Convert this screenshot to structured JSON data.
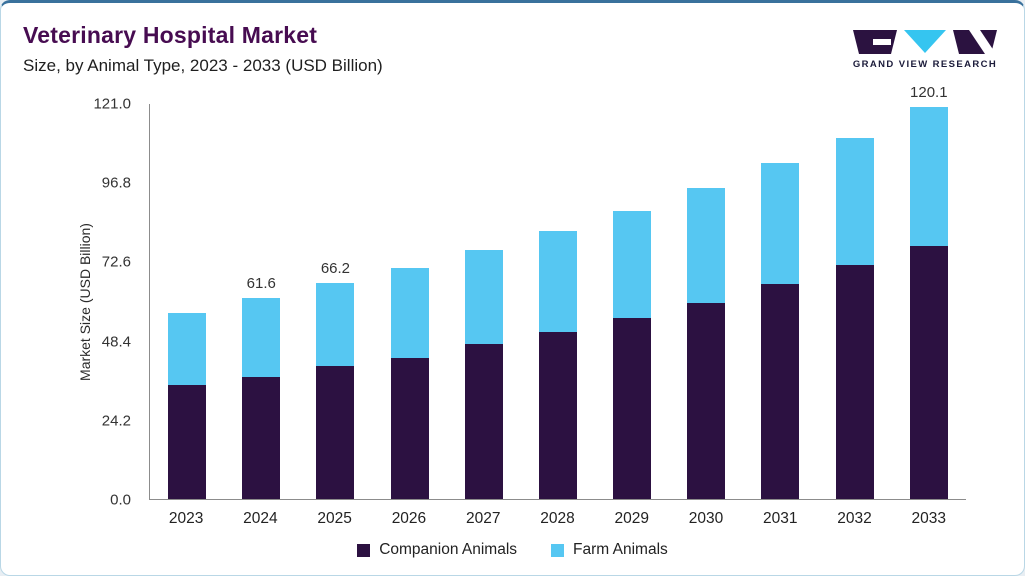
{
  "header": {
    "title": "Veterinary Hospital Market",
    "subtitle": "Size, by Animal Type, 2023 - 2033 (USD Billion)",
    "logo": {
      "text": "GRAND VIEW RESEARCH"
    }
  },
  "chart_data": {
    "type": "bar",
    "stacked": true,
    "title": "Veterinary Hospital Market Size, by Animal Type, 2023 - 2033 (USD Billion)",
    "xlabel": "",
    "ylabel": "Market Size (USD Billion)",
    "ylim": [
      0,
      121.0
    ],
    "ytick_labels": [
      "0.0",
      "24.2",
      "48.4",
      "72.6",
      "96.8",
      "121.0"
    ],
    "categories": [
      "2023",
      "2024",
      "2025",
      "2026",
      "2027",
      "2028",
      "2029",
      "2030",
      "2031",
      "2032",
      "2033"
    ],
    "series": [
      {
        "name": "Companion Animals",
        "color": "#2c1141",
        "values": [
          34.9,
          37.5,
          40.7,
          43.3,
          47.4,
          51.3,
          55.4,
          59.9,
          66.0,
          71.8,
          77.6
        ]
      },
      {
        "name": "Farm Animals",
        "color": "#56c7f2",
        "values": [
          22.1,
          24.1,
          25.5,
          27.5,
          28.9,
          30.8,
          32.8,
          35.3,
          36.9,
          38.8,
          42.5
        ]
      }
    ],
    "totals": [
      57.0,
      61.6,
      66.2,
      70.8,
      76.3,
      82.1,
      88.2,
      95.2,
      102.9,
      110.6,
      120.1
    ],
    "bar_total_labels": [
      "",
      "61.6",
      "66.2",
      "",
      "",
      "",
      "",
      "",
      "",
      "",
      "120.1"
    ],
    "legend_position": "bottom",
    "grid": false
  },
  "colors": {
    "title_text": "#470c51",
    "companion_animals": "#2c1141",
    "farm_animals": "#56c7f2",
    "card_top_border": "#39719c",
    "card_border": "#b9d7e6",
    "axis_line": "#8c8c8c"
  }
}
